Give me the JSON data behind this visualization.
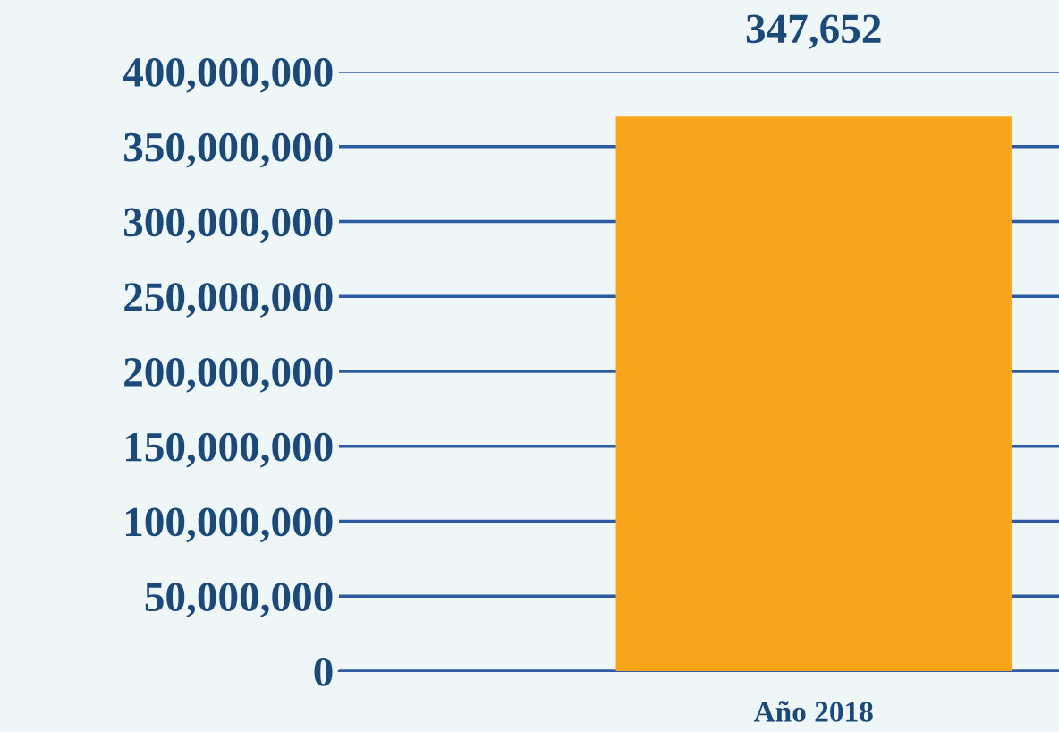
{
  "chart_data": {
    "type": "bar",
    "categories": [
      "Año 2018"
    ],
    "values": [
      370000000
    ],
    "annotations": [
      "347,652"
    ],
    "color": "#f9a51c",
    "ylim": [
      0,
      400000000
    ],
    "yticks": [
      {
        "value": 0,
        "label": "0"
      },
      {
        "value": 50000000,
        "label": "50,000,000"
      },
      {
        "value": 100000000,
        "label": "100,000,000"
      },
      {
        "value": 150000000,
        "label": "150,000,000"
      },
      {
        "value": 200000000,
        "label": "200,000,000"
      },
      {
        "value": 250000000,
        "label": "250,000,000"
      },
      {
        "value": 300000000,
        "label": "300,000,000"
      },
      {
        "value": 350000000,
        "label": "350,000,000"
      },
      {
        "value": 400000000,
        "label": "400,000,000"
      }
    ],
    "grid": "y"
  }
}
